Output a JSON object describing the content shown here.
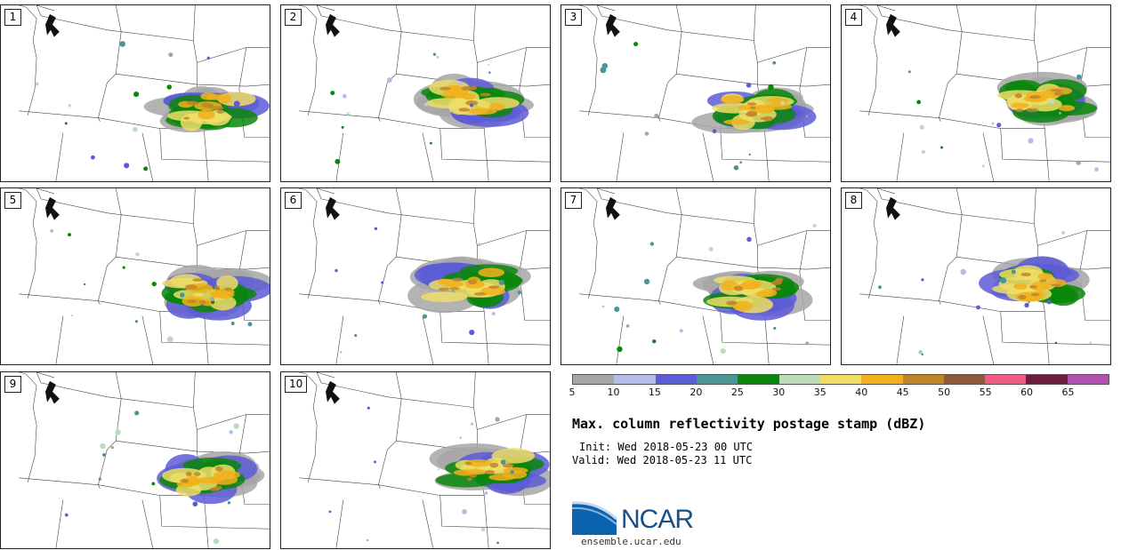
{
  "panels": [
    {
      "label": "1"
    },
    {
      "label": "2"
    },
    {
      "label": "3"
    },
    {
      "label": "4"
    },
    {
      "label": "5"
    },
    {
      "label": "6"
    },
    {
      "label": "7"
    },
    {
      "label": "8"
    },
    {
      "label": "9"
    },
    {
      "label": "10"
    }
  ],
  "colorbar": {
    "colors": [
      "#a6a6a6",
      "#b3bde6",
      "#5c5cd6",
      "#4d9494",
      "#0a860a",
      "#bcdcbc",
      "#eedd66",
      "#f2b01c",
      "#c0852c",
      "#8f5a3c",
      "#f25c84",
      "#6c1c3c",
      "#b050b0"
    ],
    "ticks": [
      "5",
      "10",
      "15",
      "20",
      "25",
      "30",
      "35",
      "40",
      "45",
      "50",
      "55",
      "60",
      "65"
    ]
  },
  "title": "Max. column reflectivity postage stamp (dBZ)",
  "init": "Init: Wed 2018-05-23 00 UTC",
  "valid": "Valid: Wed 2018-05-23 11 UTC",
  "logo": {
    "name": "NCAR",
    "url": "ensemble.ucar.edu"
  }
}
